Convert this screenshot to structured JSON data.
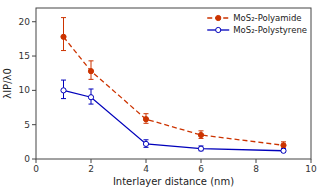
{
  "chart_data": {
    "type": "line",
    "xlabel": "Interlayer distance (nm)",
    "ylabel": "λIP/λ0",
    "x": [
      1,
      2,
      4,
      6,
      9
    ],
    "series": [
      {
        "name": "MoS₂-Polyamide",
        "color": "#cc3300",
        "line_style": "dashed",
        "marker": "circle",
        "values": [
          17.8,
          12.8,
          5.8,
          3.5,
          2.0
        ],
        "error_lower": [
          2.0,
          1.2,
          0.6,
          0.5,
          0.4
        ],
        "error_upper": [
          2.8,
          1.5,
          0.8,
          0.6,
          0.5
        ]
      },
      {
        "name": "MoS₂-Polystyrene",
        "color": "#0000bb",
        "line_style": "solid",
        "marker": "open_circle",
        "values": [
          10.0,
          9.0,
          2.2,
          1.5,
          1.2
        ],
        "error_lower": [
          1.2,
          1.0,
          0.5,
          0.3,
          0.25
        ],
        "error_upper": [
          1.5,
          1.2,
          0.6,
          0.4,
          0.3
        ]
      }
    ],
    "xlim": [
      0,
      10
    ],
    "ylim": [
      0,
      22
    ],
    "xticks": [
      0,
      2,
      4,
      6,
      8,
      10
    ],
    "yticks": [
      0,
      5,
      10,
      15,
      20
    ],
    "grid": false,
    "legend": "upper right"
  }
}
